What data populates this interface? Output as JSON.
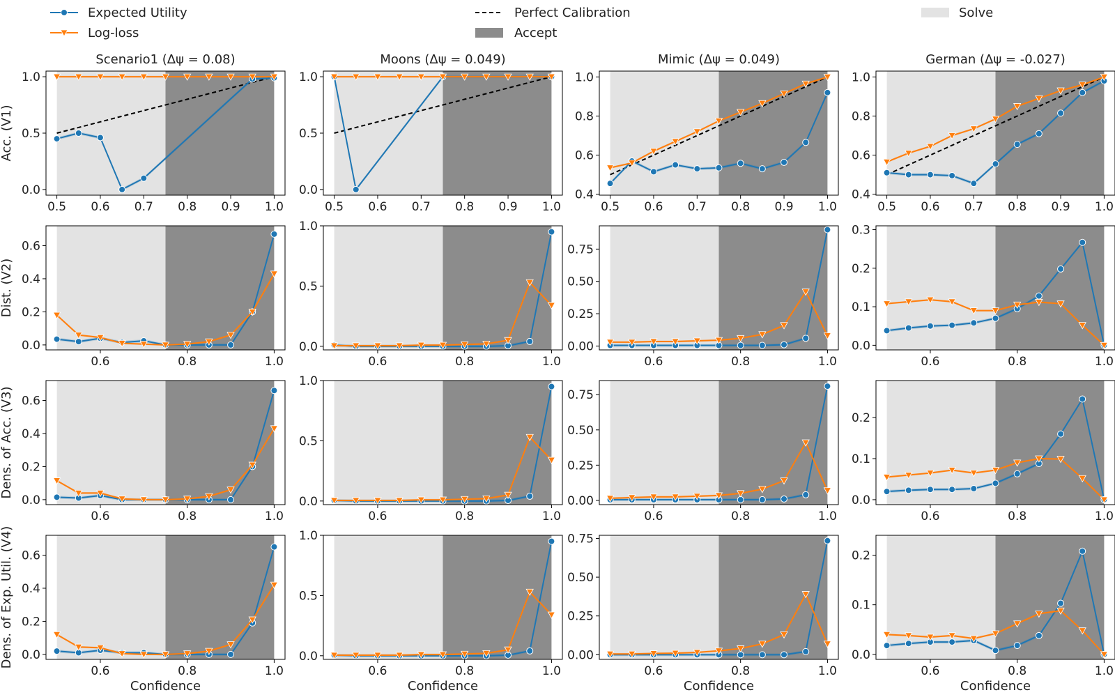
{
  "legend": {
    "expected_utility": "Expected Utility",
    "log_loss": "Log-loss",
    "perfect_calibration": "Perfect Calibration",
    "accept": "Accept",
    "solve": "Solve"
  },
  "colors": {
    "expected_utility": "#1f77b4",
    "log_loss": "#ff7f0e",
    "solve_region": "#e3e3e3",
    "accept_region": "#8c8c8c",
    "calibration": "#000000"
  },
  "columns": [
    {
      "name": "Scenario1",
      "delta": "0.08"
    },
    {
      "name": "Moons",
      "delta": "0.049"
    },
    {
      "name": "Mimic",
      "delta": "0.049"
    },
    {
      "name": "German",
      "delta": "-0.027"
    }
  ],
  "row_labels": [
    "Acc. (V1)",
    "Dist. (V2)",
    "Dens. of Acc. (V3)",
    "Dens. of Exp. Util. (V4)"
  ],
  "x_label": "Confidence",
  "chart_data": {
    "type": "line",
    "x": [
      0.5,
      0.55,
      0.6,
      0.65,
      0.7,
      0.75,
      0.8,
      0.85,
      0.9,
      0.95,
      1.0
    ],
    "solve_range": [
      0.5,
      0.75
    ],
    "accept_range": [
      0.75,
      1.0
    ],
    "panels": [
      [
        {
          "title": "Scenario1 (Δψ  = 0.08)",
          "ylim": [
            -0.05,
            1.05
          ],
          "yticks": [
            0.0,
            0.5,
            1.0
          ],
          "xticks": [
            0.5,
            0.6,
            0.7,
            0.8,
            0.9,
            1.0
          ],
          "calibration": true,
          "series": [
            {
              "name": "Expected Utility",
              "x": [
                0.5,
                0.55,
                0.6,
                0.65,
                0.7,
                0.95,
                1.0
              ],
              "values": [
                0.45,
                0.5,
                0.46,
                0.0,
                0.1,
                0.98,
                0.99
              ]
            },
            {
              "name": "Log-loss",
              "x": [
                0.5,
                0.55,
                0.6,
                0.65,
                0.7,
                0.75,
                0.8,
                0.85,
                0.9,
                0.95,
                1.0
              ],
              "values": [
                1.0,
                1.0,
                1.0,
                1.0,
                1.0,
                1.0,
                1.0,
                1.0,
                1.0,
                1.0,
                1.0
              ]
            }
          ]
        },
        {
          "title": "Moons (Δψ  = 0.049)",
          "ylim": [
            -0.05,
            1.05
          ],
          "yticks": [
            0.0,
            0.5,
            1.0
          ],
          "xticks": [
            0.5,
            0.6,
            0.7,
            0.8,
            0.9,
            1.0
          ],
          "calibration": true,
          "series": [
            {
              "name": "Expected Utility",
              "x": [
                0.5,
                0.55,
                0.75,
                1.0
              ],
              "values": [
                1.0,
                0.0,
                1.0,
                1.0
              ]
            },
            {
              "name": "Log-loss",
              "x": [
                0.5,
                0.55,
                0.6,
                0.65,
                0.7,
                0.75,
                0.8,
                0.85,
                0.9,
                0.95,
                1.0
              ],
              "values": [
                1.0,
                1.0,
                1.0,
                1.0,
                1.0,
                1.0,
                1.0,
                1.0,
                1.0,
                1.0,
                1.0
              ]
            }
          ]
        },
        {
          "title": "Mimic (Δψ  = 0.049)",
          "ylim": [
            0.395,
            1.03
          ],
          "yticks": [
            0.4,
            0.6,
            0.8,
            1.0
          ],
          "xticks": [
            0.5,
            0.6,
            0.7,
            0.8,
            0.9,
            1.0
          ],
          "calibration": true,
          "series": [
            {
              "name": "Expected Utility",
              "values": [
                0.455,
                0.57,
                0.515,
                0.55,
                0.53,
                0.535,
                0.558,
                0.53,
                0.563,
                0.665,
                0.92
              ]
            },
            {
              "name": "Log-loss",
              "values": [
                0.535,
                0.56,
                0.62,
                0.67,
                0.72,
                0.775,
                0.82,
                0.865,
                0.915,
                0.965,
                1.0
              ]
            }
          ]
        },
        {
          "title": "German (Δψ  = -0.027)",
          "ylim": [
            0.395,
            1.03
          ],
          "yticks": [
            0.4,
            0.6,
            0.8,
            1.0
          ],
          "xticks": [
            0.5,
            0.6,
            0.7,
            0.8,
            0.9,
            1.0
          ],
          "calibration": true,
          "series": [
            {
              "name": "Expected Utility",
              "values": [
                0.51,
                0.5,
                0.5,
                0.495,
                0.455,
                0.555,
                0.655,
                0.71,
                0.815,
                0.92,
                0.98
              ]
            },
            {
              "name": "Log-loss",
              "values": [
                0.565,
                0.61,
                0.645,
                0.7,
                0.735,
                0.785,
                0.85,
                0.89,
                0.93,
                0.96,
                1.0
              ]
            }
          ]
        }
      ],
      [
        {
          "ylim": [
            -0.03,
            0.72
          ],
          "yticks": [
            0.0,
            0.2,
            0.4,
            0.6
          ],
          "xticks": [
            0.6,
            0.8,
            1.0
          ],
          "series": [
            {
              "name": "Expected Utility",
              "values": [
                0.035,
                0.02,
                0.04,
                0.015,
                0.025,
                0.0,
                0.0,
                0.0,
                0.0,
                0.2,
                0.67
              ]
            },
            {
              "name": "Log-loss",
              "values": [
                0.18,
                0.06,
                0.045,
                0.01,
                0.005,
                0.0,
                0.005,
                0.02,
                0.06,
                0.2,
                0.43
              ]
            }
          ]
        },
        {
          "ylim": [
            -0.03,
            1.0
          ],
          "yticks": [
            0.0,
            0.5,
            1.0
          ],
          "xticks": [
            0.6,
            0.8,
            1.0
          ],
          "series": [
            {
              "name": "Expected Utility",
              "values": [
                0.01,
                0.0,
                0.0,
                0.0,
                0.0,
                0.0,
                0.0,
                0.0,
                0.005,
                0.04,
                0.95
              ]
            },
            {
              "name": "Log-loss",
              "values": [
                0.005,
                0.005,
                0.005,
                0.005,
                0.01,
                0.01,
                0.015,
                0.02,
                0.05,
                0.53,
                0.34
              ]
            }
          ]
        },
        {
          "ylim": [
            -0.03,
            0.93
          ],
          "yticks": [
            0.0,
            0.25,
            0.5,
            0.75
          ],
          "xticks": [
            0.6,
            0.8,
            1.0
          ],
          "series": [
            {
              "name": "Expected Utility",
              "values": [
                0.005,
                0.005,
                0.005,
                0.005,
                0.005,
                0.005,
                0.005,
                0.005,
                0.01,
                0.06,
                0.9
              ]
            },
            {
              "name": "Log-loss",
              "values": [
                0.03,
                0.03,
                0.035,
                0.035,
                0.04,
                0.045,
                0.06,
                0.09,
                0.16,
                0.42,
                0.08
              ]
            }
          ]
        },
        {
          "ylim": [
            -0.012,
            0.31
          ],
          "yticks": [
            0.0,
            0.1,
            0.2,
            0.3
          ],
          "xticks": [
            0.6,
            0.8,
            1.0
          ],
          "series": [
            {
              "name": "Expected Utility",
              "values": [
                0.038,
                0.045,
                0.05,
                0.052,
                0.058,
                0.07,
                0.095,
                0.128,
                0.198,
                0.267,
                0.0
              ]
            },
            {
              "name": "Log-loss",
              "values": [
                0.108,
                0.113,
                0.118,
                0.113,
                0.09,
                0.09,
                0.105,
                0.112,
                0.108,
                0.052,
                0.0
              ]
            }
          ]
        }
      ],
      [
        {
          "ylim": [
            -0.03,
            0.72
          ],
          "yticks": [
            0.0,
            0.2,
            0.4,
            0.6
          ],
          "xticks": [
            0.6,
            0.8,
            1.0
          ],
          "series": [
            {
              "name": "Expected Utility",
              "values": [
                0.015,
                0.01,
                0.025,
                0.0,
                0.0,
                0.0,
                0.0,
                0.0,
                0.0,
                0.2,
                0.66
              ]
            },
            {
              "name": "Log-loss",
              "values": [
                0.115,
                0.04,
                0.04,
                0.005,
                0.0,
                0.0,
                0.005,
                0.02,
                0.06,
                0.21,
                0.43
              ]
            }
          ]
        },
        {
          "ylim": [
            -0.03,
            1.0
          ],
          "yticks": [
            0.0,
            0.5,
            1.0
          ],
          "xticks": [
            0.6,
            0.8,
            1.0
          ],
          "series": [
            {
              "name": "Expected Utility",
              "values": [
                0.005,
                0.0,
                0.0,
                0.0,
                0.0,
                0.0,
                0.0,
                0.0,
                0.005,
                0.04,
                0.95
              ]
            },
            {
              "name": "Log-loss",
              "values": [
                0.005,
                0.005,
                0.005,
                0.005,
                0.01,
                0.01,
                0.015,
                0.02,
                0.05,
                0.53,
                0.34
              ]
            }
          ]
        },
        {
          "ylim": [
            -0.03,
            0.85
          ],
          "yticks": [
            0.0,
            0.25,
            0.5,
            0.75
          ],
          "xticks": [
            0.6,
            0.8,
            1.0
          ],
          "series": [
            {
              "name": "Expected Utility",
              "values": [
                0.005,
                0.005,
                0.005,
                0.005,
                0.005,
                0.005,
                0.005,
                0.005,
                0.01,
                0.04,
                0.81
              ]
            },
            {
              "name": "Log-loss",
              "values": [
                0.015,
                0.02,
                0.025,
                0.025,
                0.03,
                0.035,
                0.05,
                0.08,
                0.14,
                0.41,
                0.07
              ]
            }
          ]
        },
        {
          "ylim": [
            -0.012,
            0.29
          ],
          "yticks": [
            0.0,
            0.1,
            0.2
          ],
          "xticks": [
            0.6,
            0.8,
            1.0
          ],
          "series": [
            {
              "name": "Expected Utility",
              "values": [
                0.02,
                0.023,
                0.025,
                0.025,
                0.027,
                0.04,
                0.063,
                0.088,
                0.16,
                0.245,
                0.0
              ]
            },
            {
              "name": "Log-loss",
              "values": [
                0.055,
                0.06,
                0.065,
                0.072,
                0.065,
                0.072,
                0.09,
                0.1,
                0.099,
                0.052,
                0.0
              ]
            }
          ]
        }
      ],
      [
        {
          "ylim": [
            -0.03,
            0.72
          ],
          "yticks": [
            0.0,
            0.2,
            0.4,
            0.6
          ],
          "xticks": [
            0.6,
            0.8,
            1.0
          ],
          "series": [
            {
              "name": "Expected Utility",
              "values": [
                0.02,
                0.01,
                0.025,
                0.01,
                0.01,
                0.0,
                0.0,
                0.0,
                0.0,
                0.19,
                0.65
              ]
            },
            {
              "name": "Log-loss",
              "values": [
                0.12,
                0.045,
                0.04,
                0.005,
                0.0,
                0.0,
                0.005,
                0.02,
                0.06,
                0.21,
                0.42
              ]
            }
          ]
        },
        {
          "ylim": [
            -0.03,
            1.0
          ],
          "yticks": [
            0.0,
            0.5,
            1.0
          ],
          "xticks": [
            0.6,
            0.8,
            1.0
          ],
          "series": [
            {
              "name": "Expected Utility",
              "values": [
                0.005,
                0.0,
                0.0,
                0.0,
                0.0,
                0.0,
                0.0,
                0.0,
                0.005,
                0.04,
                0.95
              ]
            },
            {
              "name": "Log-loss",
              "values": [
                0.005,
                0.005,
                0.005,
                0.005,
                0.01,
                0.01,
                0.015,
                0.02,
                0.05,
                0.53,
                0.34
              ]
            }
          ]
        },
        {
          "ylim": [
            -0.03,
            0.77
          ],
          "yticks": [
            0.0,
            0.25,
            0.5,
            0.75
          ],
          "xticks": [
            0.6,
            0.8,
            1.0
          ],
          "series": [
            {
              "name": "Expected Utility",
              "values": [
                0.0,
                0.0,
                0.0,
                0.0,
                0.0,
                0.0,
                0.0,
                0.0,
                0.0,
                0.02,
                0.735
              ]
            },
            {
              "name": "Log-loss",
              "values": [
                0.005,
                0.005,
                0.008,
                0.01,
                0.015,
                0.025,
                0.04,
                0.07,
                0.13,
                0.39,
                0.07
              ]
            }
          ]
        },
        {
          "ylim": [
            -0.01,
            0.24
          ],
          "yticks": [
            0.0,
            0.1,
            0.2
          ],
          "xticks": [
            0.6,
            0.8,
            1.0
          ],
          "series": [
            {
              "name": "Expected Utility",
              "values": [
                0.018,
                0.022,
                0.025,
                0.025,
                0.028,
                0.008,
                0.018,
                0.038,
                0.103,
                0.208,
                0.0
              ]
            },
            {
              "name": "Log-loss",
              "values": [
                0.04,
                0.038,
                0.035,
                0.038,
                0.032,
                0.042,
                0.062,
                0.082,
                0.088,
                0.048,
                0.0
              ]
            }
          ]
        }
      ]
    ]
  }
}
